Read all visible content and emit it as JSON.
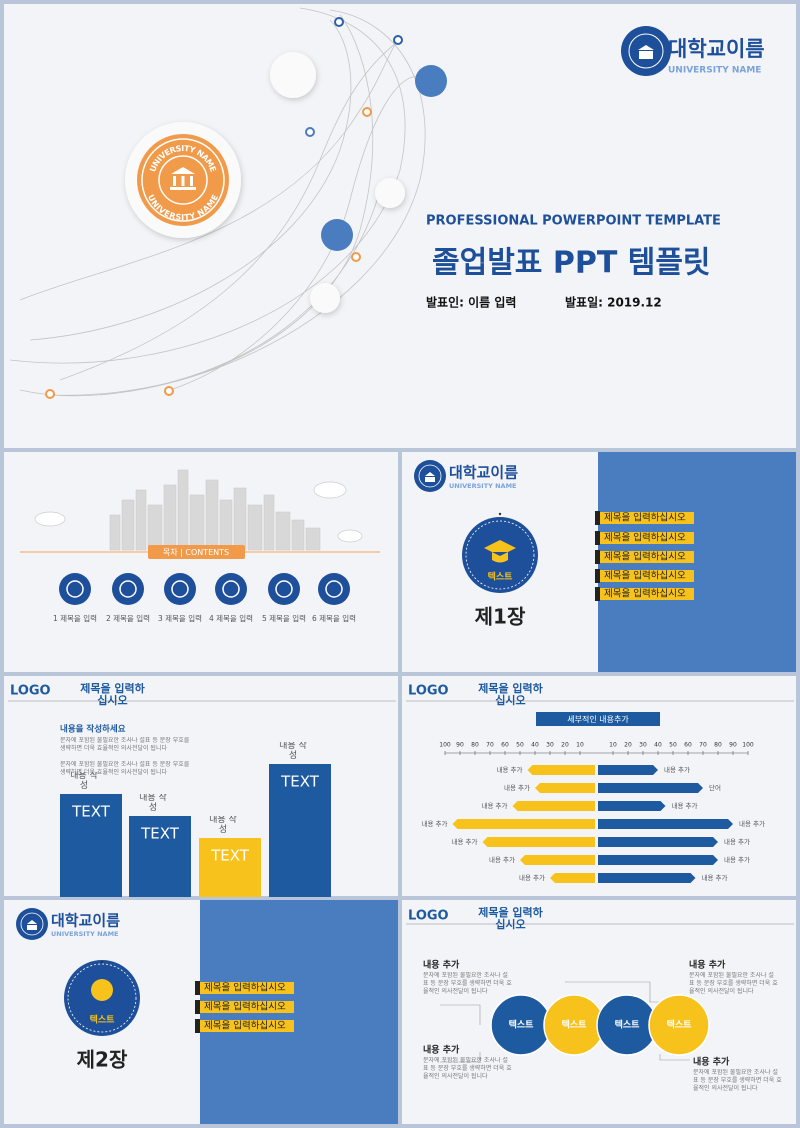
{
  "cover": {
    "logo_name": "대학교이름",
    "logo_sub": "UNIVERSITY NAME",
    "emblem_text": "UNIVERSITY NAME",
    "subtitle": "PROFESSIONAL POWERPOINT TEMPLATE",
    "title": "졸업발표 PPT 템플릿",
    "presenter": "발표인: 이름 입력",
    "date": "발표일: 2019.12"
  },
  "contents": {
    "heading": "목차 | CONTENTS",
    "items": [
      "1 제목을 입력",
      "2 제목을 입력",
      "3 제목을 입력",
      "4 제목을 입력",
      "5 제목을 입력",
      "6 제목을 입력"
    ]
  },
  "chapter1": {
    "logo_name": "대학교이름",
    "logo_sub": "UNIVERSITY NAME",
    "badge": "텍스트",
    "chapter": "제1장",
    "items": [
      "제목을 입력하십시오",
      "제목을 입력하십시오",
      "제목을 입력하십시오",
      "제목을 입력하십시오",
      "제목을 입력하십시오"
    ]
  },
  "bar_slide": {
    "logo": "LOGO",
    "title": "제목을 입력하십시오",
    "heading": "내용을 작성하세요",
    "paragraphs": [
      "문자에 포함된 불필요한 조사나 설표 등 문장 부호를 생략하면 더욱 효율적인 의사전달이 됩니다",
      "문자에 포함된 불필요한 조사나 설표 등 문장 부호를 생략하면 더욱 효율적인 의사전달이 됩니다"
    ],
    "bars": [
      {
        "label": "TEXT",
        "note": "내용 작성",
        "value": 103,
        "color": "#1e5aa0"
      },
      {
        "label": "TEXT",
        "note": "내용 작성",
        "value": 81,
        "color": "#1e5aa0"
      },
      {
        "label": "TEXT",
        "note": "내용 작성",
        "value": 59,
        "color": "#f7c21c"
      },
      {
        "label": "TEXT",
        "note": "내용 작성",
        "value": 133,
        "color": "#1e5aa0"
      }
    ]
  },
  "butterfly": {
    "logo": "LOGO",
    "title": "제목을 입력하십시오",
    "banner": "세부적인 내용추가",
    "left_ticks": [
      100,
      90,
      80,
      70,
      60,
      50,
      40,
      30,
      20,
      10
    ],
    "right_ticks": [
      10,
      20,
      30,
      40,
      50,
      60,
      70,
      80,
      90,
      100
    ],
    "left_color": "#f7c21c",
    "right_color": "#1e5aa0",
    "rows": [
      {
        "left": 45,
        "left_label": "내용 추가",
        "right": 40,
        "right_label": "내용 추가"
      },
      {
        "left": 40,
        "left_label": "내용 추가",
        "right": 70,
        "right_label": "단어"
      },
      {
        "left": 55,
        "left_label": "내용 추가",
        "right": 45,
        "right_label": "내용 추가"
      },
      {
        "left": 95,
        "left_label": "내용 추가",
        "right": 90,
        "right_label": "내용 추가"
      },
      {
        "left": 75,
        "left_label": "내용 추가",
        "right": 80,
        "right_label": "내용 추가"
      },
      {
        "left": 50,
        "left_label": "내용 추가",
        "right": 80,
        "right_label": "내용 추가"
      },
      {
        "left": 30,
        "left_label": "내용 추가",
        "right": 65,
        "right_label": "내용 추가"
      }
    ]
  },
  "chapter2": {
    "logo_name": "대학교이름",
    "logo_sub": "UNIVERSITY NAME",
    "badge": "텍스트",
    "chapter": "제2장",
    "items": [
      "제목을 입력하십시오",
      "제목을 입력하십시오",
      "제목을 입력하십시오"
    ]
  },
  "process": {
    "logo": "LOGO",
    "title": "제목을 입력하십시오",
    "circles": [
      "텍스트",
      "텍스트",
      "텍스트",
      "텍스트"
    ],
    "callouts": [
      {
        "title": "내용 추가",
        "text": "문자에 포함된 불필요한 조사나 설표 등 문장 부호를 생략하면 더욱 효율적인 의사전달이 됩니다"
      },
      {
        "title": "내용 추가",
        "text": "문자에 포함된 불필요한 조사나 설표 등 문장 부호를 생략하면 더욱 효율적인 의사전달이 됩니다"
      },
      {
        "title": "내용 추가",
        "text": "문자에 포함된 불필요한 조사나 설표 등 문장 부호를 생략하면 더욱 효율적인 의사전달이 됩니다"
      },
      {
        "title": "내용 추가",
        "text": "문자에 포함된 불필요한 조사나 설표 등 문장 부호를 생략하면 더욱 효율적인 의사전달이 됩니다"
      }
    ]
  }
}
